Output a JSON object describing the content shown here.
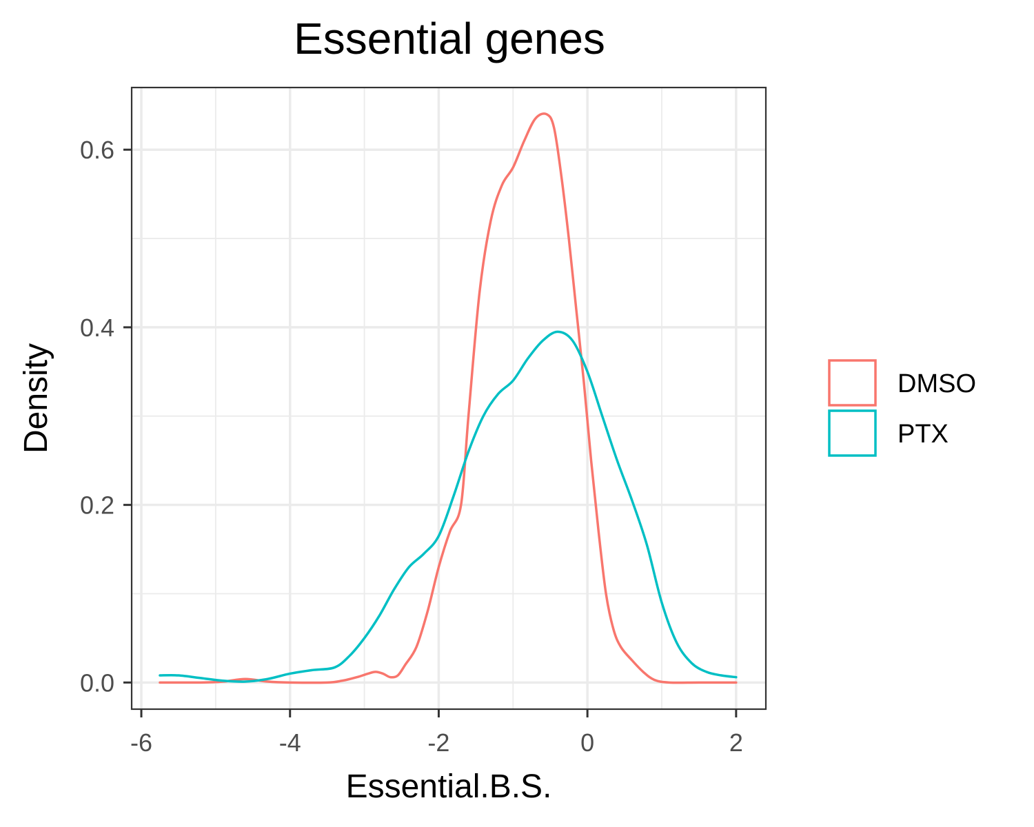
{
  "chart_data": {
    "type": "line",
    "subtype": "density",
    "title": "Essential genes",
    "xlabel": "Essential.B.S.",
    "ylabel": "Density",
    "xlim": [
      -6.13,
      2.4
    ],
    "ylim": [
      -0.03,
      0.67
    ],
    "x_ticks": [
      -6,
      -4,
      -2,
      0,
      2
    ],
    "x_tick_labels": [
      "-6",
      "-4",
      "-2",
      "0",
      "2"
    ],
    "y_ticks": [
      0.0,
      0.2,
      0.4,
      0.6
    ],
    "y_tick_labels": [
      "0.0",
      "0.2",
      "0.4",
      "0.6"
    ],
    "grid": true,
    "legend_position": "right",
    "series": [
      {
        "name": "DMSO",
        "color": "#F8766D",
        "points": [
          [
            -5.75,
            0.0
          ],
          [
            -5.2,
            0.0
          ],
          [
            -4.9,
            0.001
          ],
          [
            -4.6,
            0.004
          ],
          [
            -4.3,
            0.001
          ],
          [
            -4.0,
            0.0
          ],
          [
            -3.5,
            0.0
          ],
          [
            -3.3,
            0.002
          ],
          [
            -3.1,
            0.006
          ],
          [
            -2.95,
            0.01
          ],
          [
            -2.85,
            0.012
          ],
          [
            -2.75,
            0.01
          ],
          [
            -2.65,
            0.006
          ],
          [
            -2.55,
            0.008
          ],
          [
            -2.45,
            0.02
          ],
          [
            -2.3,
            0.04
          ],
          [
            -2.15,
            0.08
          ],
          [
            -2.0,
            0.13
          ],
          [
            -1.85,
            0.17
          ],
          [
            -1.7,
            0.2
          ],
          [
            -1.6,
            0.3
          ],
          [
            -1.45,
            0.44
          ],
          [
            -1.3,
            0.52
          ],
          [
            -1.15,
            0.56
          ],
          [
            -1.0,
            0.58
          ],
          [
            -0.85,
            0.61
          ],
          [
            -0.7,
            0.635
          ],
          [
            -0.55,
            0.64
          ],
          [
            -0.45,
            0.625
          ],
          [
            -0.35,
            0.57
          ],
          [
            -0.25,
            0.5
          ],
          [
            -0.15,
            0.42
          ],
          [
            -0.05,
            0.34
          ],
          [
            0.05,
            0.25
          ],
          [
            0.15,
            0.17
          ],
          [
            0.25,
            0.1
          ],
          [
            0.35,
            0.06
          ],
          [
            0.45,
            0.04
          ],
          [
            0.6,
            0.025
          ],
          [
            0.75,
            0.012
          ],
          [
            0.9,
            0.003
          ],
          [
            1.1,
            0.0
          ],
          [
            1.5,
            0.0
          ],
          [
            2.0,
            0.0
          ]
        ]
      },
      {
        "name": "PTX",
        "color": "#00BFC4",
        "points": [
          [
            -5.75,
            0.008
          ],
          [
            -5.5,
            0.008
          ],
          [
            -5.2,
            0.005
          ],
          [
            -4.9,
            0.002
          ],
          [
            -4.6,
            0.001
          ],
          [
            -4.3,
            0.004
          ],
          [
            -4.0,
            0.01
          ],
          [
            -3.7,
            0.014
          ],
          [
            -3.4,
            0.017
          ],
          [
            -3.2,
            0.03
          ],
          [
            -3.0,
            0.05
          ],
          [
            -2.8,
            0.075
          ],
          [
            -2.6,
            0.105
          ],
          [
            -2.4,
            0.13
          ],
          [
            -2.2,
            0.145
          ],
          [
            -2.0,
            0.165
          ],
          [
            -1.8,
            0.21
          ],
          [
            -1.6,
            0.26
          ],
          [
            -1.4,
            0.3
          ],
          [
            -1.2,
            0.325
          ],
          [
            -1.0,
            0.34
          ],
          [
            -0.8,
            0.365
          ],
          [
            -0.6,
            0.385
          ],
          [
            -0.4,
            0.395
          ],
          [
            -0.2,
            0.385
          ],
          [
            0.0,
            0.35
          ],
          [
            0.2,
            0.3
          ],
          [
            0.4,
            0.25
          ],
          [
            0.6,
            0.205
          ],
          [
            0.8,
            0.155
          ],
          [
            1.0,
            0.09
          ],
          [
            1.2,
            0.045
          ],
          [
            1.4,
            0.022
          ],
          [
            1.6,
            0.012
          ],
          [
            1.8,
            0.008
          ],
          [
            2.0,
            0.006
          ]
        ]
      }
    ]
  }
}
